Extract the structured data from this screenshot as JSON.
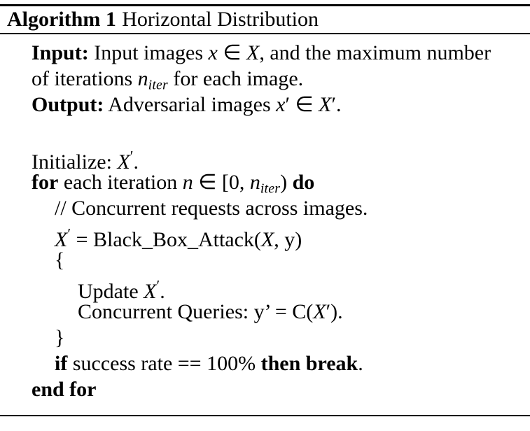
{
  "colors": {
    "background": "#ffffff",
    "text": "#000000",
    "rule": "#000000"
  },
  "header": {
    "label": "Algorithm 1",
    "title": "Horizontal Distribution"
  },
  "algorithm": {
    "lines": [
      {
        "indent": 0,
        "segments": [
          {
            "text": "Input:",
            "bold": true
          },
          {
            "text": " Input images "
          },
          {
            "text": "x",
            "italic": true
          },
          {
            "text": " ∈ "
          },
          {
            "text": "X",
            "italic": true
          },
          {
            "text": ", and the maximum number"
          }
        ]
      },
      {
        "indent": 0,
        "segments": [
          {
            "text": "of iterations "
          },
          {
            "text": "n",
            "italic": true
          },
          {
            "text": "iter",
            "italic": true,
            "sub": true
          },
          {
            "text": " for each image."
          }
        ]
      },
      {
        "indent": 0,
        "segments": [
          {
            "text": "Output:",
            "bold": true
          },
          {
            "text": " Adversarial images "
          },
          {
            "text": "x",
            "italic": true
          },
          {
            "text": "′"
          },
          {
            "text": " ∈ "
          },
          {
            "text": "X",
            "italic": true
          },
          {
            "text": "′"
          },
          {
            "text": "."
          }
        ]
      },
      {
        "indent": 0,
        "blank": true,
        "segments": []
      },
      {
        "indent": 0,
        "segments": [
          {
            "text": "Initialize: "
          },
          {
            "text": "X",
            "italic": true
          },
          {
            "text": "′",
            "sup": true
          },
          {
            "text": "."
          }
        ]
      },
      {
        "indent": 0,
        "segments": [
          {
            "text": "for",
            "bold": true
          },
          {
            "text": " each iteration "
          },
          {
            "text": "n",
            "italic": true
          },
          {
            "text": " ∈ [0, "
          },
          {
            "text": "n",
            "italic": true
          },
          {
            "text": "iter",
            "italic": true,
            "sub": true
          },
          {
            "text": ") "
          },
          {
            "text": "do",
            "bold": true
          }
        ]
      },
      {
        "indent": 1,
        "segments": [
          {
            "text": "// Concurrent requests across images."
          }
        ]
      },
      {
        "indent": 1,
        "segments": [
          {
            "text": "X",
            "italic": true
          },
          {
            "text": "′",
            "sup": true
          },
          {
            "text": " = Black_Box_Attack("
          },
          {
            "text": "X",
            "italic": true
          },
          {
            "text": ", y)"
          }
        ]
      },
      {
        "indent": 1,
        "segments": [
          {
            "text": "{"
          }
        ]
      },
      {
        "indent": 2,
        "segments": [
          {
            "text": "Update "
          },
          {
            "text": "X",
            "italic": true
          },
          {
            "text": "′",
            "sup": true
          },
          {
            "text": "."
          }
        ]
      },
      {
        "indent": 2,
        "segments": [
          {
            "text": "Concurrent Queries: y’ = C("
          },
          {
            "text": "X",
            "italic": true
          },
          {
            "text": "′"
          },
          {
            "text": ")."
          }
        ]
      },
      {
        "indent": 1,
        "segments": [
          {
            "text": "}"
          }
        ]
      },
      {
        "indent": 1,
        "segments": [
          {
            "text": "if",
            "bold": true
          },
          {
            "text": " success rate == 100% "
          },
          {
            "text": "then",
            "bold": true
          },
          {
            "text": " "
          },
          {
            "text": "break",
            "bold": true
          },
          {
            "text": "."
          }
        ]
      },
      {
        "indent": 0,
        "segments": [
          {
            "text": "end for",
            "bold": true
          }
        ]
      }
    ]
  }
}
